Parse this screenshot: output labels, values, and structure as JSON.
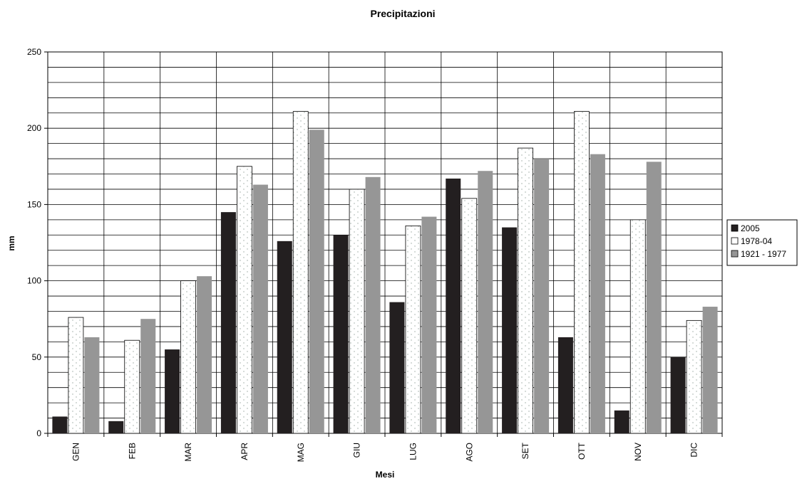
{
  "chart_data": {
    "type": "bar",
    "title": "Precipitazioni",
    "xlabel": "Mesi",
    "ylabel": "mm",
    "ylim": [
      0,
      250
    ],
    "yticks": [
      0,
      50,
      100,
      150,
      200,
      250
    ],
    "grid": true,
    "legend_position": "right",
    "categories": [
      "GEN",
      "FEB",
      "MAR",
      "APR",
      "MAG",
      "GIU",
      "LUG",
      "AGO",
      "SET",
      "OTT",
      "NOV",
      "DIC"
    ],
    "series": [
      {
        "name": "2005",
        "color": "#231f20",
        "pattern": "solid",
        "values": [
          11,
          8,
          55,
          145,
          126,
          130,
          86,
          167,
          135,
          63,
          15,
          50
        ]
      },
      {
        "name": "1978-04",
        "color": "#ffffff",
        "pattern": "dotted",
        "values": [
          76,
          61,
          100,
          175,
          211,
          160,
          136,
          154,
          187,
          211,
          140,
          74
        ]
      },
      {
        "name": "1921 - 1977",
        "color": "#969696",
        "pattern": "solid",
        "values": [
          63,
          75,
          103,
          163,
          199,
          168,
          142,
          172,
          180,
          183,
          178,
          83
        ]
      }
    ]
  }
}
